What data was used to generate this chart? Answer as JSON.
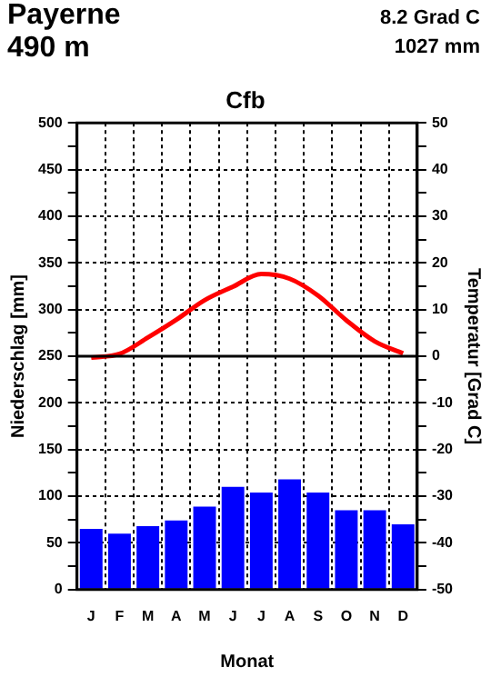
{
  "chart_data": {
    "type": "bar",
    "title": "Cfb",
    "xlabel": "Monat",
    "ylabel": "Niederschlag [mm]",
    "y2label": "Temperatur [Grad C]",
    "annotations": [
      "Payerne",
      "8.2 Grad C",
      "490 m",
      "1027 mm"
    ],
    "categories": [
      "J",
      "F",
      "M",
      "A",
      "M",
      "J",
      "J",
      "A",
      "S",
      "O",
      "N",
      "D"
    ],
    "series": [
      {
        "color": "#0000ff",
        "values": [
          65,
          60,
          68,
          74,
          89,
          110,
          104,
          118,
          104,
          85,
          85,
          70
        ]
      },
      {
        "type": "line",
        "axis": "y2",
        "color": "#ff0000",
        "values": [
          -0.3,
          0.5,
          4,
          7.8,
          12,
          14.9,
          17.6,
          16.6,
          13,
          7.7,
          3.2,
          0.6
        ]
      }
    ],
    "ylim": [
      0,
      500
    ],
    "yticks": [
      0,
      {
        "value": 25,
        "label": null
      },
      50,
      {
        "value": 75,
        "label": null
      },
      100,
      {
        "value": 125,
        "label": null
      },
      150,
      {
        "value": 175,
        "label": null
      },
      200,
      {
        "value": 225,
        "label": null
      },
      250,
      {
        "value": 275,
        "label": null
      },
      300,
      {
        "value": 325,
        "label": null
      },
      350,
      {
        "value": 375,
        "label": null
      },
      400,
      {
        "value": 425,
        "label": null
      },
      450,
      {
        "value": 475,
        "label": null
      },
      500
    ],
    "y2lim": [
      -50,
      50
    ],
    "y2ticks": [
      -50,
      {
        "value": -45,
        "label": null
      },
      -40,
      {
        "value": -35,
        "label": null
      },
      -30,
      {
        "value": -25,
        "label": null
      },
      -20,
      {
        "value": -15,
        "label": null
      },
      -10,
      {
        "value": -5,
        "label": null
      },
      0,
      {
        "value": 5,
        "label": null
      },
      10,
      {
        "value": 15,
        "label": null
      },
      20,
      {
        "value": 25,
        "label": null
      },
      30,
      {
        "value": 35,
        "label": null
      },
      40,
      {
        "value": 45,
        "label": null
      },
      50
    ],
    "ref_lines": [
      {
        "axis": "y2",
        "value": 0,
        "color": "#000000"
      }
    ],
    "grid": true,
    "legend": false,
    "marker": "none",
    "line_style": "solid"
  }
}
